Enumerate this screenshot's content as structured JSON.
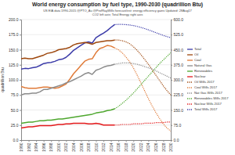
{
  "chart_data": {
    "type": "line",
    "title": "World energy consumption by fuel type, 1990-2030 (quadrillion Btu)",
    "subtitle": "US EIA data 1990-2015   @PTO_Au @ProfRayWills forecast/est: energy efficiency gains   Updated: 28Aug17",
    "annotations": [
      "CO2 left axis; Total Energy right axis"
    ],
    "y_label": "quadrillion Btu",
    "x": [
      1990,
      1991,
      1992,
      1993,
      1994,
      1995,
      1996,
      1997,
      1998,
      1999,
      2000,
      2001,
      2002,
      2003,
      2004,
      2005,
      2006,
      2007,
      2008,
      2009,
      2010,
      2011,
      2012,
      2013,
      2014,
      2015,
      2016,
      2017,
      2018,
      2019,
      2020,
      2021,
      2022,
      2023,
      2024,
      2025,
      2026,
      2027,
      2028,
      2029,
      2030
    ],
    "xlim": [
      1990,
      2030
    ],
    "xticks": [
      1990,
      1992,
      1994,
      1996,
      1998,
      2000,
      2002,
      2004,
      2006,
      2008,
      2010,
      2012,
      2014,
      2016,
      2018,
      2020,
      2022,
      2024,
      2026,
      2028,
      2030
    ],
    "ylim": [
      0,
      200
    ],
    "yticks": [
      {
        "value": 0,
        "label": "0.0"
      },
      {
        "value": 25,
        "label": "25.0"
      },
      {
        "value": 50,
        "label": "50.0"
      },
      {
        "value": 75,
        "label": "75.0"
      },
      {
        "value": 100,
        "label": "100.0"
      },
      {
        "value": 125,
        "label": "125.0"
      },
      {
        "value": 150,
        "label": "150.0"
      },
      {
        "value": 175,
        "label": "175.0"
      },
      {
        "value": 200,
        "label": "200.0"
      }
    ],
    "y2lim": [
      0,
      600
    ],
    "y2ticks": [
      {
        "value": 0,
        "label": "0.0"
      },
      {
        "value": 75,
        "label": "75.0"
      },
      {
        "value": 150,
        "label": "150.0"
      },
      {
        "value": 225,
        "label": "225.0"
      },
      {
        "value": 300,
        "label": "300.0"
      },
      {
        "value": 375,
        "label": "375.0"
      },
      {
        "value": 450,
        "label": "450.0"
      },
      {
        "value": 525,
        "label": "525.0"
      },
      {
        "value": 600,
        "label": "600.0"
      }
    ],
    "grid": true,
    "legend": "right",
    "series": [
      {
        "name": "Total",
        "color": "#3a3aa8",
        "axis": "y2",
        "line_style": "solid",
        "values": [
          354,
          357,
          356,
          360,
          363,
          371,
          381,
          385,
          387,
          392,
          400,
          403,
          412,
          428,
          447,
          459,
          472,
          484,
          489,
          483,
          510,
          522,
          532,
          545,
          561,
          575,
          null,
          null,
          null,
          null,
          null,
          null,
          null,
          null,
          null,
          null,
          null,
          null,
          null,
          null,
          null
        ]
      },
      {
        "name": "Oil",
        "color": "#9e480e",
        "line_style": "solid",
        "values": [
          135,
          136,
          135,
          135,
          137,
          139,
          141,
          144,
          145,
          147,
          150,
          151,
          152,
          154,
          158,
          160,
          161,
          162,
          161,
          159,
          162,
          163,
          164,
          165,
          165,
          166,
          null,
          null,
          null,
          null,
          null,
          null,
          null,
          null,
          null,
          null,
          null,
          null,
          null,
          null,
          null
        ]
      },
      {
        "name": "Coal",
        "color": "#e07b39",
        "line_style": "solid",
        "values": [
          89,
          87,
          86,
          86,
          86,
          87,
          88,
          88,
          87,
          86,
          87,
          90,
          93,
          101,
          110,
          117,
          124,
          131,
          134,
          135,
          145,
          152,
          154,
          157,
          156,
          153,
          null,
          null,
          null,
          null,
          null,
          null,
          null,
          null,
          null,
          null,
          null,
          null,
          null,
          null,
          null
        ]
      },
      {
        "name": "Natural Gas",
        "color": "#8c8c8c",
        "line_style": "solid",
        "values": [
          75,
          77,
          77,
          78,
          78,
          80,
          84,
          84,
          86,
          88,
          90,
          92,
          95,
          97,
          100,
          103,
          106,
          110,
          112,
          109,
          116,
          118,
          121,
          123,
          124,
          126,
          null,
          null,
          null,
          null,
          null,
          null,
          null,
          null,
          null,
          null,
          null,
          null,
          null,
          null,
          null
        ]
      },
      {
        "name": "Renewables",
        "color": "#4ea72e",
        "line_style": "solid",
        "values": [
          28,
          29,
          30,
          30,
          31,
          32,
          32,
          33,
          33,
          34,
          35,
          35,
          36,
          37,
          38,
          39,
          40,
          41,
          42,
          43,
          45,
          46,
          47,
          49,
          50,
          52,
          null,
          null,
          null,
          null,
          null,
          null,
          null,
          null,
          null,
          null,
          null,
          null,
          null,
          null,
          null
        ]
      },
      {
        "name": "Nuclear",
        "color": "#e31a1c",
        "line_style": "solid",
        "values": [
          20,
          21,
          22,
          22,
          23,
          24,
          24,
          24,
          24,
          25,
          26,
          26,
          27,
          27,
          28,
          28,
          28,
          28,
          27,
          27,
          28,
          27,
          25,
          25,
          25,
          25,
          null,
          null,
          null,
          null,
          null,
          null,
          null,
          null,
          null,
          null,
          null,
          null,
          null,
          null,
          null
        ]
      },
      {
        "name": "Oil Wills 2017",
        "color": "#9e480e",
        "line_style": "dotted",
        "values": [
          null,
          null,
          null,
          null,
          null,
          null,
          null,
          null,
          null,
          null,
          null,
          null,
          null,
          null,
          null,
          null,
          null,
          null,
          null,
          null,
          null,
          null,
          null,
          null,
          null,
          166,
          166,
          165,
          163,
          160,
          155,
          149,
          142,
          134,
          126,
          117,
          108,
          99,
          90,
          82,
          75
        ]
      },
      {
        "name": "Coal Wills 2017",
        "color": "#e07b39",
        "line_style": "dotted",
        "values": [
          null,
          null,
          null,
          null,
          null,
          null,
          null,
          null,
          null,
          null,
          null,
          null,
          null,
          null,
          null,
          null,
          null,
          null,
          null,
          null,
          null,
          null,
          null,
          null,
          null,
          153,
          150,
          145,
          138,
          130,
          120,
          108,
          95,
          82,
          69,
          57,
          46,
          36,
          27,
          20,
          15
        ]
      },
      {
        "name": "Nat Gas Wills 2017",
        "color": "#8c8c8c",
        "line_style": "dotted",
        "values": [
          null,
          null,
          null,
          null,
          null,
          null,
          null,
          null,
          null,
          null,
          null,
          null,
          null,
          null,
          null,
          null,
          null,
          null,
          null,
          null,
          null,
          null,
          null,
          null,
          null,
          126,
          127,
          128,
          128,
          128,
          127,
          126,
          124,
          122,
          120,
          118,
          115,
          112,
          109,
          106,
          103
        ]
      },
      {
        "name": "Renewables Wills 2017",
        "color": "#4ea72e",
        "line_style": "dotted",
        "values": [
          null,
          null,
          null,
          null,
          null,
          null,
          null,
          null,
          null,
          null,
          null,
          null,
          null,
          null,
          null,
          null,
          null,
          null,
          null,
          null,
          null,
          null,
          null,
          null,
          null,
          52,
          56,
          61,
          66,
          72,
          78,
          85,
          92,
          99,
          106,
          113,
          120,
          127,
          133,
          139,
          145
        ]
      },
      {
        "name": "Nuclear Wills 2017",
        "color": "#e31a1c",
        "line_style": "dotted",
        "values": [
          null,
          null,
          null,
          null,
          null,
          null,
          null,
          null,
          null,
          null,
          null,
          null,
          null,
          null,
          null,
          null,
          null,
          null,
          null,
          null,
          null,
          null,
          null,
          null,
          null,
          25,
          25,
          26,
          26,
          26,
          27,
          27,
          27,
          28,
          28,
          28,
          29,
          29,
          29,
          30,
          30
        ]
      },
      {
        "name": "Total Wills 2017",
        "color": "#3a3aa8",
        "axis": "y2",
        "line_style": "dotted",
        "values": [
          null,
          null,
          null,
          null,
          null,
          null,
          null,
          null,
          null,
          null,
          null,
          null,
          null,
          null,
          null,
          null,
          null,
          null,
          null,
          null,
          null,
          null,
          null,
          null,
          null,
          575,
          576,
          576,
          575,
          573,
          570,
          566,
          561,
          555,
          549,
          542,
          535,
          528,
          521,
          515,
          510
        ]
      }
    ]
  }
}
